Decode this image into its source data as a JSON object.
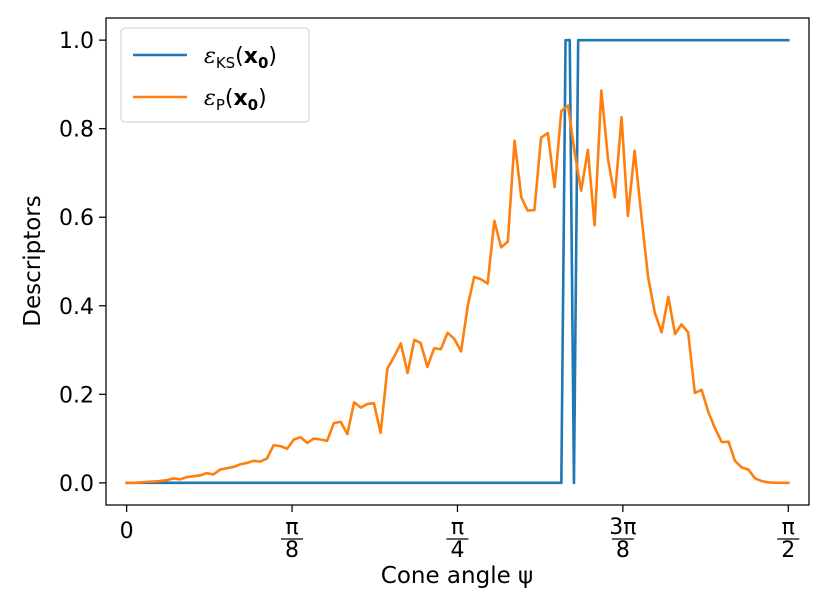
{
  "chart_data": {
    "type": "line",
    "xlabel": "Cone angle ψ",
    "ylabel": "Descriptors",
    "xlim": [
      -0.049,
      1.62
    ],
    "ylim": [
      -0.05,
      1.05
    ],
    "grid": false,
    "legend_position": "top-left",
    "x_ticks": [
      {
        "value": 0,
        "label": "0"
      },
      {
        "value": 0.3927,
        "num": "π",
        "den": "8"
      },
      {
        "value": 0.7854,
        "num": "π",
        "den": "4"
      },
      {
        "value": 1.1781,
        "num": "3π",
        "den": "8"
      },
      {
        "value": 1.5708,
        "num": "π",
        "den": "2"
      }
    ],
    "y_ticks": [
      "0.0",
      "0.2",
      "0.4",
      "0.6",
      "0.8",
      "1.0"
    ],
    "series": [
      {
        "name": "ε_KS(x₀)",
        "legend_main": "ε",
        "legend_sub": "KS",
        "legend_arg": "x",
        "legend_arg_sub": "0",
        "color": "#1f77b4",
        "x": [
          0,
          1.032,
          1.042,
          1.052,
          1.062,
          1.072,
          1.082,
          1.5708
        ],
        "y": [
          0,
          0,
          1,
          1,
          0,
          1,
          1,
          1
        ]
      },
      {
        "name": "ε_P(x₀)",
        "legend_main": "ε",
        "legend_sub": "P",
        "legend_arg": "x",
        "legend_arg_sub": "0",
        "color": "#ff7f0e",
        "x": [
          0.0,
          0.016,
          0.032,
          0.048,
          0.064,
          0.079,
          0.095,
          0.111,
          0.127,
          0.143,
          0.159,
          0.175,
          0.19,
          0.206,
          0.222,
          0.238,
          0.254,
          0.27,
          0.286,
          0.302,
          0.317,
          0.333,
          0.349,
          0.365,
          0.381,
          0.397,
          0.413,
          0.429,
          0.444,
          0.46,
          0.476,
          0.492,
          0.508,
          0.524,
          0.54,
          0.556,
          0.571,
          0.587,
          0.603,
          0.619,
          0.635,
          0.651,
          0.667,
          0.683,
          0.698,
          0.714,
          0.73,
          0.746,
          0.762,
          0.778,
          0.794,
          0.81,
          0.825,
          0.841,
          0.857,
          0.873,
          0.889,
          0.905,
          0.921,
          0.937,
          0.952,
          0.968,
          0.984,
          1.0,
          1.016,
          1.032,
          1.048,
          1.063,
          1.079,
          1.095,
          1.111,
          1.127,
          1.143,
          1.159,
          1.175,
          1.19,
          1.206,
          1.222,
          1.238,
          1.254,
          1.27,
          1.286,
          1.302,
          1.317,
          1.333,
          1.349,
          1.365,
          1.381,
          1.397,
          1.413,
          1.429,
          1.444,
          1.46,
          1.476,
          1.492,
          1.508,
          1.524,
          1.54,
          1.556,
          1.571
        ],
        "y": [
          0.0,
          0.0,
          0.001,
          0.002,
          0.003,
          0.004,
          0.006,
          0.01,
          0.008,
          0.013,
          0.015,
          0.017,
          0.022,
          0.019,
          0.03,
          0.033,
          0.036,
          0.042,
          0.045,
          0.05,
          0.048,
          0.055,
          0.085,
          0.083,
          0.077,
          0.098,
          0.103,
          0.09,
          0.1,
          0.098,
          0.095,
          0.135,
          0.138,
          0.11,
          0.182,
          0.17,
          0.178,
          0.18,
          0.113,
          0.258,
          0.285,
          0.315,
          0.248,
          0.323,
          0.316,
          0.262,
          0.304,
          0.302,
          0.339,
          0.325,
          0.297,
          0.401,
          0.465,
          0.46,
          0.45,
          0.592,
          0.532,
          0.545,
          0.773,
          0.645,
          0.615,
          0.616,
          0.78,
          0.79,
          0.668,
          0.84,
          0.852,
          0.75,
          0.66,
          0.752,
          0.582,
          0.886,
          0.73,
          0.645,
          0.826,
          0.603,
          0.75,
          0.603,
          0.465,
          0.384,
          0.34,
          0.42,
          0.336,
          0.358,
          0.34,
          0.203,
          0.21,
          0.16,
          0.123,
          0.092,
          0.093,
          0.05,
          0.035,
          0.03,
          0.01,
          0.004,
          0.001,
          0.0005,
          0.0002,
          0.0
        ]
      }
    ]
  }
}
